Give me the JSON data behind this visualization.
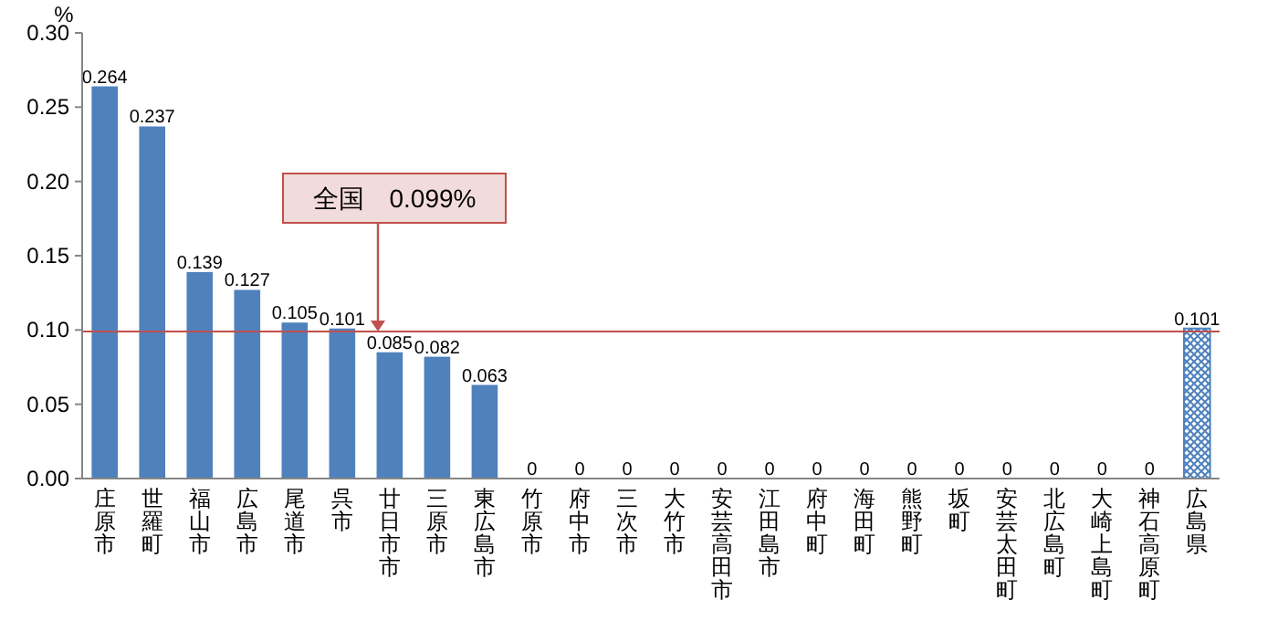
{
  "chart_data": {
    "type": "bar",
    "ylabel": "%",
    "categories": [
      "庄原市",
      "世羅町",
      "福山市",
      "広島市",
      "尾道市",
      "呉市",
      "廿日市市",
      "三原市",
      "東広島市",
      "竹原市",
      "府中市",
      "三次市",
      "大竹市",
      "安芸高田市",
      "江田島市",
      "府中町",
      "海田町",
      "熊野町",
      "坂町",
      "安芸太田町",
      "北広島町",
      "大崎上島町",
      "神石高原町",
      "広島県"
    ],
    "values": [
      0.264,
      0.237,
      0.139,
      0.127,
      0.105,
      0.101,
      0.085,
      0.082,
      0.063,
      0,
      0,
      0,
      0,
      0,
      0,
      0,
      0,
      0,
      0,
      0,
      0,
      0,
      0,
      0.101
    ],
    "colors": [
      "#4f81bd",
      "#4f81bd",
      "#4f81bd",
      "#4f81bd",
      "#4f81bd",
      "#4f81bd",
      "#4f81bd",
      "#4f81bd",
      "#4f81bd",
      "#4f81bd",
      "#4f81bd",
      "#4f81bd",
      "#4f81bd",
      "#4f81bd",
      "#4f81bd",
      "#4f81bd",
      "#4f81bd",
      "#4f81bd",
      "#4f81bd",
      "#4f81bd",
      "#4f81bd",
      "#4f81bd",
      "#4f81bd",
      "#4f81bd"
    ],
    "ylim": [
      0,
      0.3
    ],
    "yticks": [
      {
        "value": 0,
        "label": "0.00"
      },
      {
        "value": 0.05,
        "label": "0.05"
      },
      {
        "value": 0.1,
        "label": "0.10"
      },
      {
        "value": 0.15,
        "label": "0.15"
      },
      {
        "value": 0.2,
        "label": "0.20"
      },
      {
        "value": 0.25,
        "label": "0.25"
      },
      {
        "value": 0.3,
        "label": "0.30"
      }
    ],
    "data_labels": true,
    "ref_lines": [
      {
        "axis": "y",
        "value": 0.099,
        "label": "全国　0.099%",
        "color": "#c0504d"
      }
    ]
  }
}
